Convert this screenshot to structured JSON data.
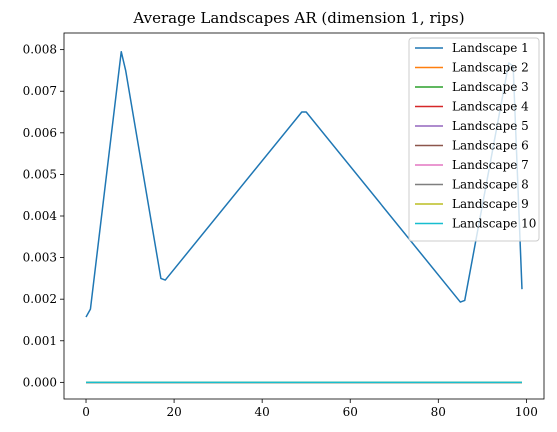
{
  "chart_data": {
    "type": "line",
    "title": "Average Landscapes AR (dimension 1, rips)",
    "xlabel": "",
    "ylabel": "",
    "xlim": [
      -5,
      104
    ],
    "ylim": [
      -0.0004,
      0.0084
    ],
    "xticks": [
      0,
      20,
      40,
      60,
      80,
      100
    ],
    "xtick_labels": [
      "0",
      "20",
      "40",
      "60",
      "80",
      "100"
    ],
    "yticks": [
      0,
      0.001,
      0.002,
      0.003,
      0.004,
      0.005,
      0.006,
      0.007,
      0.008
    ],
    "ytick_labels": [
      "0.000",
      "0.001",
      "0.002",
      "0.003",
      "0.004",
      "0.005",
      "0.006",
      "0.007",
      "0.008"
    ],
    "grid": false,
    "legend_position": "top-right",
    "series": [
      {
        "name": "Landscape 1",
        "color": "#1f77b4",
        "x": [
          0,
          1,
          8,
          9,
          17,
          18,
          49,
          50,
          85,
          86,
          96,
          97,
          99
        ],
        "y": [
          0.00157,
          0.00176,
          0.00795,
          0.0075,
          0.0025,
          0.00246,
          0.0065,
          0.0065,
          0.00193,
          0.00197,
          0.00768,
          0.0076,
          0.00224
        ]
      },
      {
        "name": "Landscape 2",
        "color": "#ff7f0e",
        "x": [
          0,
          99
        ],
        "y": [
          0,
          0
        ]
      },
      {
        "name": "Landscape 3",
        "color": "#2ca02c",
        "x": [
          0,
          99
        ],
        "y": [
          0,
          0
        ]
      },
      {
        "name": "Landscape 4",
        "color": "#d62728",
        "x": [
          0,
          99
        ],
        "y": [
          0,
          0
        ]
      },
      {
        "name": "Landscape 5",
        "color": "#9467bd",
        "x": [
          0,
          99
        ],
        "y": [
          0,
          0
        ]
      },
      {
        "name": "Landscape 6",
        "color": "#8c564b",
        "x": [
          0,
          99
        ],
        "y": [
          0,
          0
        ]
      },
      {
        "name": "Landscape 7",
        "color": "#e377c2",
        "x": [
          0,
          99
        ],
        "y": [
          0,
          0
        ]
      },
      {
        "name": "Landscape 8",
        "color": "#7f7f7f",
        "x": [
          0,
          99
        ],
        "y": [
          0,
          0
        ]
      },
      {
        "name": "Landscape 9",
        "color": "#bcbd22",
        "x": [
          0,
          99
        ],
        "y": [
          0,
          0
        ]
      },
      {
        "name": "Landscape 10",
        "color": "#17becf",
        "x": [
          0,
          99
        ],
        "y": [
          0,
          0
        ]
      }
    ]
  }
}
